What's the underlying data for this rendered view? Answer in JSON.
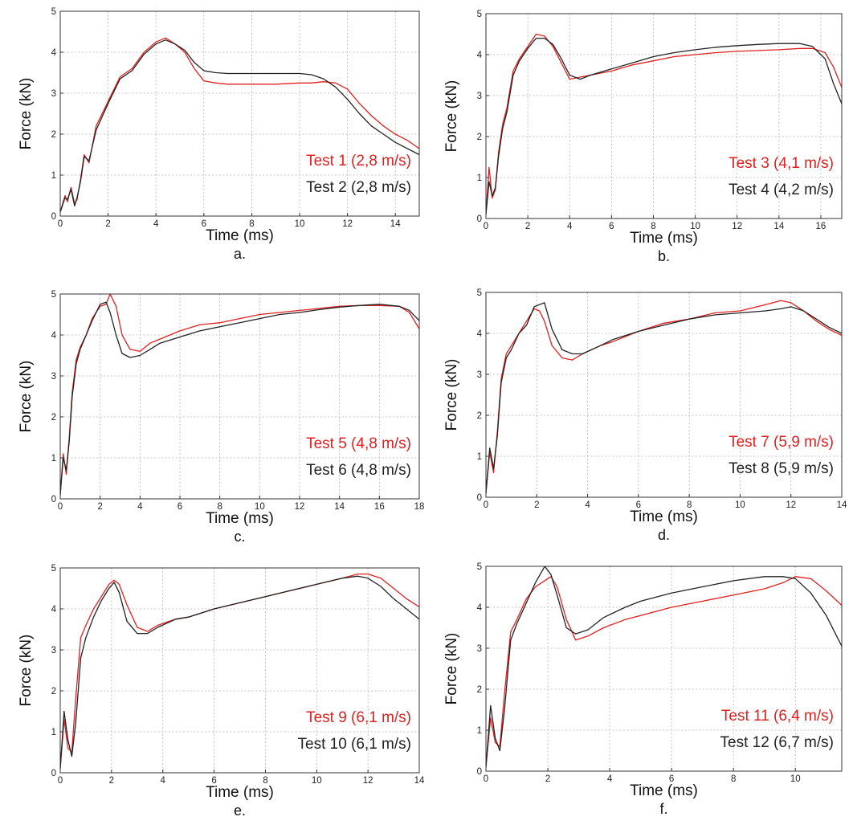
{
  "figure": {
    "colors": {
      "red": "#e02020",
      "black": "#222222"
    },
    "layout": "3 rows x 2 columns"
  },
  "chart_data": [
    {
      "type": "line",
      "panel_label": "a.",
      "xlabel": "Time (ms)",
      "ylabel": "Force (kN)",
      "xlim": [
        0,
        15
      ],
      "ylim": [
        0,
        5
      ],
      "xticks": [
        0,
        2,
        4,
        6,
        8,
        10,
        12,
        14
      ],
      "yticks": [
        0,
        1,
        2,
        3,
        4,
        5
      ],
      "grid": true,
      "legend_position": "bottom-right",
      "series": [
        {
          "name": "Test 1 (2,8 m/s)",
          "color": "#e02020",
          "x": [
            0,
            0.2,
            0.3,
            0.45,
            0.6,
            0.7,
            0.85,
            1.0,
            1.2,
            1.5,
            2.0,
            2.5,
            3.0,
            3.5,
            4.0,
            4.4,
            4.8,
            5.2,
            5.6,
            6.0,
            6.5,
            7.0,
            8.0,
            9.0,
            10.0,
            10.5,
            11.0,
            11.5,
            12.0,
            12.5,
            13.0,
            13.5,
            14.0,
            14.5,
            15.0
          ],
          "y": [
            0.1,
            0.5,
            0.35,
            0.7,
            0.3,
            0.4,
            0.9,
            1.5,
            1.3,
            2.2,
            2.8,
            3.4,
            3.6,
            4.0,
            4.25,
            4.35,
            4.2,
            4.0,
            3.6,
            3.3,
            3.25,
            3.22,
            3.22,
            3.22,
            3.25,
            3.25,
            3.28,
            3.25,
            3.1,
            2.75,
            2.45,
            2.2,
            2.0,
            1.85,
            1.65
          ]
        },
        {
          "name": "Test 2 (2,8 m/s)",
          "color": "#222222",
          "x": [
            0,
            0.2,
            0.3,
            0.45,
            0.6,
            0.7,
            0.85,
            1.0,
            1.2,
            1.5,
            2.0,
            2.5,
            3.0,
            3.5,
            4.0,
            4.4,
            4.8,
            5.2,
            5.6,
            6.0,
            6.5,
            7.0,
            8.0,
            9.0,
            10.0,
            10.5,
            11.0,
            11.5,
            12.0,
            12.5,
            13.0,
            13.5,
            14.0,
            14.5,
            15.0
          ],
          "y": [
            0.1,
            0.45,
            0.4,
            0.65,
            0.25,
            0.45,
            0.85,
            1.45,
            1.35,
            2.1,
            2.75,
            3.35,
            3.55,
            3.95,
            4.2,
            4.3,
            4.2,
            4.05,
            3.75,
            3.55,
            3.5,
            3.48,
            3.48,
            3.48,
            3.48,
            3.45,
            3.35,
            3.15,
            2.85,
            2.5,
            2.2,
            2.0,
            1.8,
            1.65,
            1.5
          ]
        }
      ]
    },
    {
      "type": "line",
      "panel_label": "b.",
      "xlabel": "Time (ms)",
      "ylabel": "Force (kN)",
      "xlim": [
        0,
        17
      ],
      "ylim": [
        0,
        5
      ],
      "xticks": [
        0,
        2,
        4,
        6,
        8,
        10,
        12,
        14,
        16
      ],
      "yticks": [
        0,
        1,
        2,
        3,
        4,
        5
      ],
      "grid": true,
      "legend_position": "bottom-right",
      "series": [
        {
          "name": "Test 3 (4,1 m/s)",
          "color": "#e02020",
          "x": [
            0,
            0.15,
            0.3,
            0.45,
            0.6,
            0.8,
            1.0,
            1.3,
            1.6,
            2.0,
            2.4,
            2.8,
            3.2,
            3.6,
            4.0,
            4.5,
            5.0,
            6.0,
            7.0,
            8.0,
            9.0,
            10.0,
            11.0,
            12.0,
            13.0,
            14.0,
            15.0,
            15.6,
            16.2,
            16.6,
            17.0
          ],
          "y": [
            0.1,
            1.25,
            0.5,
            0.7,
            1.6,
            2.3,
            2.7,
            3.6,
            3.9,
            4.2,
            4.5,
            4.45,
            4.2,
            3.8,
            3.4,
            3.45,
            3.5,
            3.6,
            3.75,
            3.85,
            3.95,
            4.0,
            4.05,
            4.08,
            4.1,
            4.12,
            4.15,
            4.15,
            4.05,
            3.7,
            3.2
          ]
        },
        {
          "name": "Test 4 (4,2 m/s)",
          "color": "#222222",
          "x": [
            0,
            0.15,
            0.3,
            0.45,
            0.6,
            0.8,
            1.0,
            1.3,
            1.6,
            2.0,
            2.4,
            2.8,
            3.2,
            3.6,
            4.0,
            4.5,
            5.0,
            6.0,
            7.0,
            8.0,
            9.0,
            10.0,
            11.0,
            12.0,
            13.0,
            14.0,
            15.0,
            15.6,
            16.2,
            16.6,
            17.0
          ],
          "y": [
            0.1,
            0.9,
            0.55,
            0.75,
            1.5,
            2.2,
            2.6,
            3.5,
            3.85,
            4.15,
            4.4,
            4.4,
            4.25,
            3.9,
            3.5,
            3.4,
            3.5,
            3.65,
            3.8,
            3.95,
            4.05,
            4.12,
            4.18,
            4.22,
            4.25,
            4.27,
            4.27,
            4.2,
            3.9,
            3.3,
            2.8
          ]
        }
      ]
    },
    {
      "type": "line",
      "panel_label": "c.",
      "xlabel": "Time (ms)",
      "ylabel": "Force (kN)",
      "xlim": [
        0,
        18
      ],
      "ylim": [
        0,
        5
      ],
      "xticks": [
        0,
        2,
        4,
        6,
        8,
        10,
        12,
        14,
        16,
        18
      ],
      "yticks": [
        0,
        1,
        2,
        3,
        4,
        5
      ],
      "grid": true,
      "legend_position": "bottom-right",
      "series": [
        {
          "name": "Test 5 (4,8 m/s)",
          "color": "#e02020",
          "x": [
            0,
            0.15,
            0.3,
            0.45,
            0.6,
            0.8,
            1.0,
            1.3,
            1.6,
            2.0,
            2.3,
            2.5,
            2.8,
            3.1,
            3.5,
            4.0,
            4.5,
            5.0,
            6.0,
            7.0,
            8.0,
            9.0,
            10.0,
            11.0,
            12.0,
            13.0,
            14.0,
            15.0,
            16.0,
            17.0,
            17.5,
            18.0
          ],
          "y": [
            0.1,
            1.1,
            0.6,
            1.5,
            2.6,
            3.4,
            3.7,
            4.0,
            4.4,
            4.7,
            4.75,
            5.0,
            4.7,
            4.0,
            3.65,
            3.6,
            3.8,
            3.9,
            4.1,
            4.25,
            4.3,
            4.4,
            4.5,
            4.55,
            4.6,
            4.65,
            4.7,
            4.72,
            4.72,
            4.7,
            4.55,
            4.15
          ]
        },
        {
          "name": "Test 6 (4,8 m/s)",
          "color": "#222222",
          "x": [
            0,
            0.15,
            0.3,
            0.45,
            0.6,
            0.8,
            1.0,
            1.3,
            1.6,
            2.0,
            2.3,
            2.5,
            2.8,
            3.1,
            3.5,
            4.0,
            4.5,
            5.0,
            6.0,
            7.0,
            8.0,
            9.0,
            10.0,
            11.0,
            12.0,
            13.0,
            14.0,
            15.0,
            16.0,
            17.0,
            17.5,
            18.0
          ],
          "y": [
            0.1,
            1.0,
            0.7,
            1.4,
            2.5,
            3.3,
            3.65,
            4.0,
            4.35,
            4.75,
            4.8,
            4.55,
            4.0,
            3.55,
            3.45,
            3.5,
            3.65,
            3.8,
            3.95,
            4.1,
            4.2,
            4.3,
            4.4,
            4.5,
            4.55,
            4.62,
            4.68,
            4.72,
            4.75,
            4.7,
            4.6,
            4.35
          ]
        }
      ]
    },
    {
      "type": "line",
      "panel_label": "d.",
      "xlabel": "Time (ms)",
      "ylabel": "Force (kN)",
      "xlim": [
        0,
        14
      ],
      "ylim": [
        0,
        5
      ],
      "xticks": [
        0,
        2,
        4,
        6,
        8,
        10,
        12,
        14
      ],
      "yticks": [
        0,
        1,
        2,
        3,
        4,
        5
      ],
      "grid": true,
      "legend_position": "bottom-right",
      "series": [
        {
          "name": "Test 7 (5,9 m/s)",
          "color": "#e02020",
          "x": [
            0,
            0.15,
            0.3,
            0.45,
            0.6,
            0.8,
            1.0,
            1.3,
            1.6,
            1.9,
            2.1,
            2.3,
            2.6,
            3.0,
            3.4,
            3.8,
            4.5,
            5.0,
            6.0,
            7.0,
            8.0,
            9.0,
            10.0,
            11.0,
            11.6,
            12.0,
            12.5,
            13.0,
            13.5,
            14.0
          ],
          "y": [
            0.1,
            1.1,
            0.6,
            1.6,
            2.9,
            3.5,
            3.7,
            4.0,
            4.3,
            4.6,
            4.55,
            4.3,
            3.7,
            3.4,
            3.35,
            3.5,
            3.7,
            3.8,
            4.05,
            4.25,
            4.35,
            4.5,
            4.55,
            4.7,
            4.8,
            4.75,
            4.55,
            4.3,
            4.1,
            3.95
          ]
        },
        {
          "name": "Test 8 (5,9 m/s)",
          "color": "#222222",
          "x": [
            0,
            0.15,
            0.3,
            0.45,
            0.6,
            0.8,
            1.0,
            1.3,
            1.6,
            1.9,
            2.1,
            2.3,
            2.6,
            3.0,
            3.4,
            3.8,
            4.5,
            5.0,
            6.0,
            7.0,
            8.0,
            9.0,
            10.0,
            11.0,
            11.6,
            12.0,
            12.5,
            13.0,
            13.5,
            14.0
          ],
          "y": [
            0.1,
            1.2,
            0.7,
            1.5,
            2.8,
            3.4,
            3.6,
            4.0,
            4.2,
            4.65,
            4.7,
            4.75,
            4.1,
            3.6,
            3.5,
            3.5,
            3.7,
            3.85,
            4.05,
            4.2,
            4.35,
            4.45,
            4.5,
            4.55,
            4.6,
            4.65,
            4.55,
            4.35,
            4.15,
            4.0
          ]
        }
      ]
    },
    {
      "type": "line",
      "panel_label": "e.",
      "xlabel": "Time (ms)",
      "ylabel": "Force (kN)",
      "xlim": [
        0,
        14
      ],
      "ylim": [
        0,
        5
      ],
      "xticks": [
        0,
        2,
        4,
        6,
        8,
        10,
        12,
        14
      ],
      "yticks": [
        0,
        1,
        2,
        3,
        4,
        5
      ],
      "grid": true,
      "legend_position": "bottom-right",
      "series": [
        {
          "name": "Test 9 (6,1 m/s)",
          "color": "#e02020",
          "x": [
            0,
            0.15,
            0.3,
            0.45,
            0.6,
            0.8,
            1.0,
            1.3,
            1.6,
            1.9,
            2.1,
            2.3,
            2.6,
            3.0,
            3.4,
            3.8,
            4.5,
            5.0,
            6.0,
            7.0,
            8.0,
            9.0,
            10.0,
            11.0,
            11.6,
            12.0,
            12.5,
            13.0,
            13.5,
            14.0
          ],
          "y": [
            0.1,
            1.3,
            0.6,
            0.5,
            1.8,
            3.3,
            3.6,
            4.0,
            4.3,
            4.6,
            4.7,
            4.6,
            4.1,
            3.55,
            3.45,
            3.6,
            3.75,
            3.8,
            4.0,
            4.15,
            4.3,
            4.45,
            4.6,
            4.75,
            4.85,
            4.85,
            4.75,
            4.5,
            4.25,
            4.05
          ]
        },
        {
          "name": "Test 10 (6,1 m/s)",
          "color": "#222222",
          "x": [
            0,
            0.15,
            0.3,
            0.45,
            0.6,
            0.8,
            1.0,
            1.3,
            1.6,
            1.9,
            2.1,
            2.3,
            2.6,
            3.0,
            3.4,
            3.8,
            4.5,
            5.0,
            6.0,
            7.0,
            8.0,
            9.0,
            10.0,
            11.0,
            11.6,
            12.0,
            12.5,
            13.0,
            13.5,
            14.0
          ],
          "y": [
            0.1,
            1.5,
            0.8,
            0.4,
            1.2,
            2.8,
            3.3,
            3.8,
            4.2,
            4.5,
            4.65,
            4.4,
            3.7,
            3.4,
            3.4,
            3.55,
            3.75,
            3.8,
            4.0,
            4.15,
            4.3,
            4.45,
            4.6,
            4.75,
            4.8,
            4.75,
            4.55,
            4.25,
            4.0,
            3.75
          ]
        }
      ]
    },
    {
      "type": "line",
      "panel_label": "f.",
      "xlabel": "Time (ms)",
      "ylabel": "Force (kN)",
      "xlim": [
        0,
        11.5
      ],
      "ylim": [
        0,
        5
      ],
      "xticks": [
        0,
        2,
        4,
        6,
        8,
        10
      ],
      "yticks": [
        0,
        1,
        2,
        3,
        4,
        5
      ],
      "grid": true,
      "legend_position": "bottom-right",
      "series": [
        {
          "name": "Test 11 (6,4 m/s)",
          "color": "#e02020",
          "x": [
            0,
            0.15,
            0.3,
            0.45,
            0.6,
            0.8,
            1.0,
            1.3,
            1.6,
            1.9,
            2.1,
            2.3,
            2.6,
            2.9,
            3.3,
            3.8,
            4.5,
            5.0,
            6.0,
            7.0,
            8.0,
            9.0,
            9.6,
            10.0,
            10.5,
            11.0,
            11.5
          ],
          "y": [
            0.1,
            1.3,
            0.7,
            0.6,
            1.9,
            3.4,
            3.7,
            4.2,
            4.5,
            4.65,
            4.75,
            4.5,
            3.7,
            3.2,
            3.3,
            3.5,
            3.7,
            3.8,
            4.0,
            4.15,
            4.3,
            4.45,
            4.6,
            4.75,
            4.7,
            4.4,
            4.05
          ]
        },
        {
          "name": "Test 12 (6,7 m/s)",
          "color": "#222222",
          "x": [
            0,
            0.15,
            0.3,
            0.45,
            0.6,
            0.8,
            1.0,
            1.3,
            1.6,
            1.9,
            2.1,
            2.3,
            2.6,
            2.9,
            3.3,
            3.8,
            4.5,
            5.0,
            6.0,
            7.0,
            8.0,
            9.0,
            9.6,
            10.0,
            10.5,
            11.0,
            11.5
          ],
          "y": [
            0.1,
            1.6,
            0.8,
            0.5,
            1.5,
            3.2,
            3.6,
            4.1,
            4.6,
            5.0,
            4.8,
            4.3,
            3.5,
            3.35,
            3.45,
            3.75,
            4.0,
            4.15,
            4.35,
            4.5,
            4.65,
            4.75,
            4.75,
            4.7,
            4.35,
            3.8,
            3.05
          ]
        }
      ]
    }
  ]
}
